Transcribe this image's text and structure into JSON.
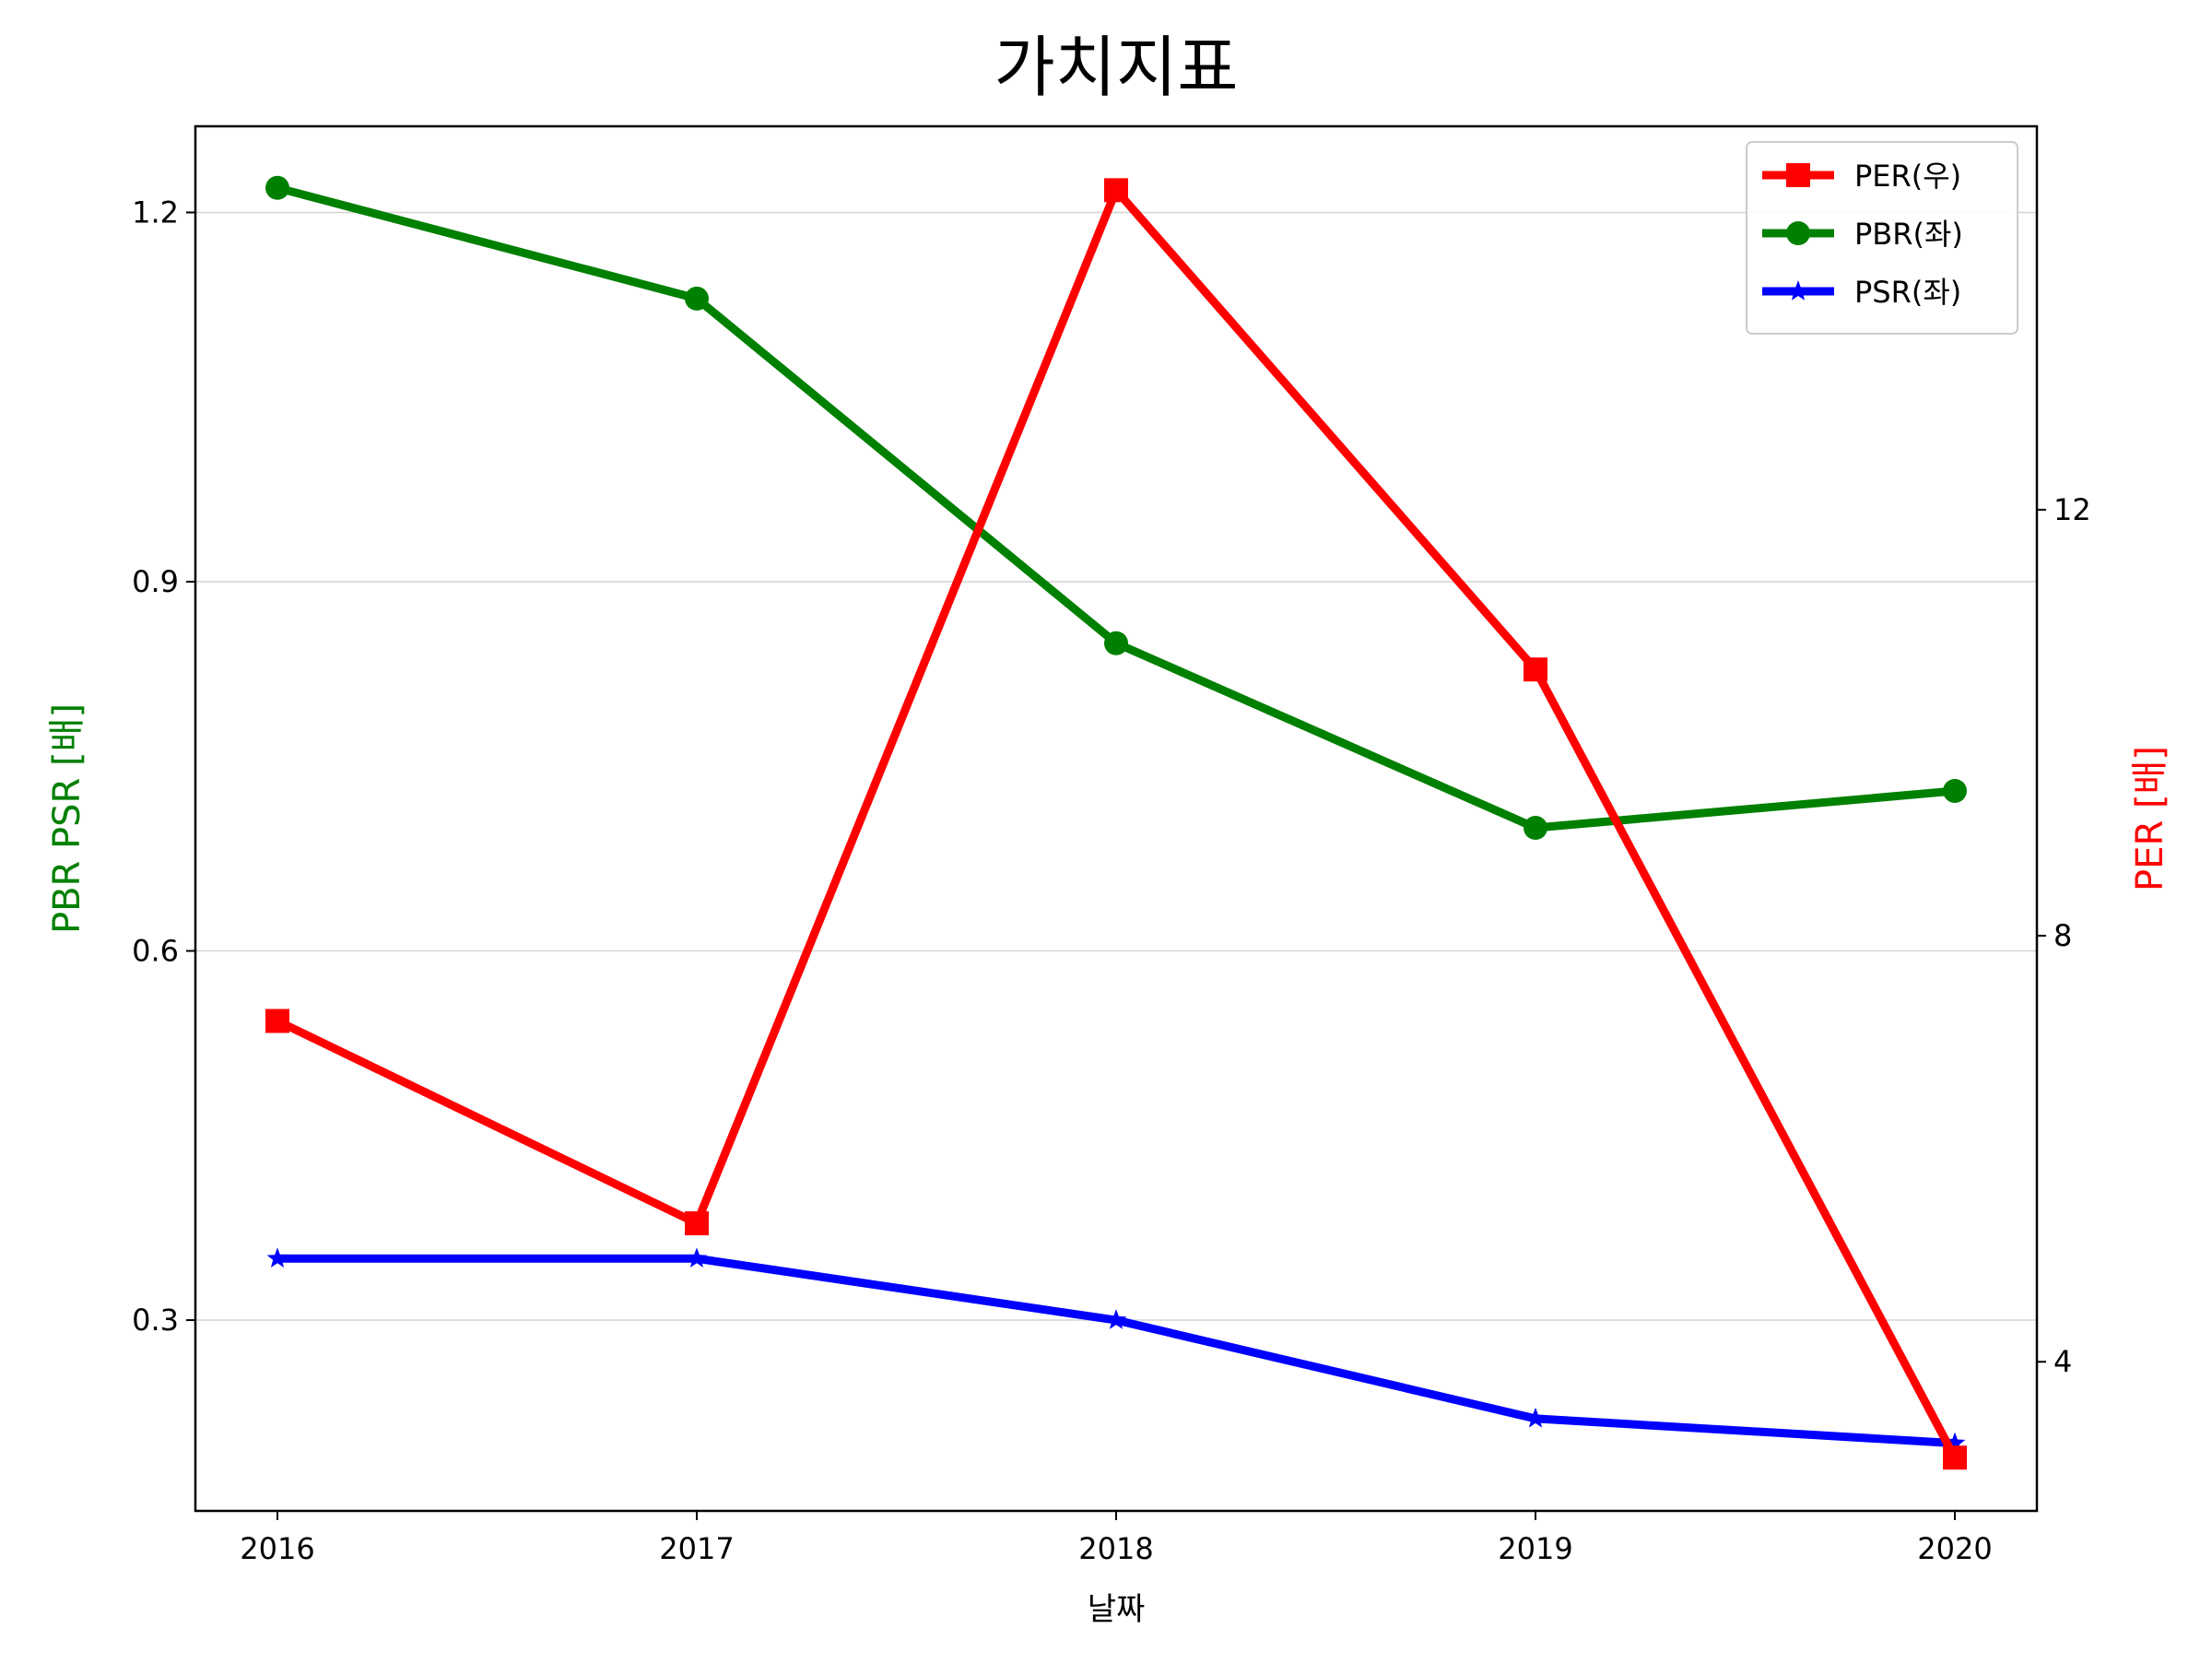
{
  "chart_data": {
    "type": "line",
    "title": "가치지표",
    "xlabel": "날짜",
    "ylabel_left": "PBR PSR [배]",
    "ylabel_right": "PER [배]",
    "x": [
      "2016",
      "2017",
      "2018",
      "2019",
      "2020"
    ],
    "ylim_left": [
      0.145,
      1.27
    ],
    "yticks_left": [
      "0.3",
      "0.6",
      "0.9",
      "1.2"
    ],
    "ylim_right": [
      2.6,
      15.6
    ],
    "yticks_right": [
      "4",
      "8",
      "12"
    ],
    "grid": "horizontal (left axis)",
    "legend_position": "top-right",
    "series": [
      {
        "name": "PER(우)",
        "axis": "right",
        "marker": "square",
        "color": "#ff0000",
        "values": [
          7.2,
          5.3,
          15.0,
          10.5,
          3.1
        ]
      },
      {
        "name": "PBR(좌)",
        "axis": "left",
        "marker": "circle",
        "color": "#008000",
        "values": [
          1.22,
          1.13,
          0.85,
          0.7,
          0.73
        ]
      },
      {
        "name": "PSR(좌)",
        "axis": "left",
        "marker": "star",
        "color": "#0000ff",
        "values": [
          0.35,
          0.35,
          0.3,
          0.22,
          0.2
        ]
      }
    ],
    "colors": {
      "left_label": "#008000",
      "right_label": "#ff0000",
      "grid": "#d3d3d3",
      "axis": "#000000"
    }
  }
}
